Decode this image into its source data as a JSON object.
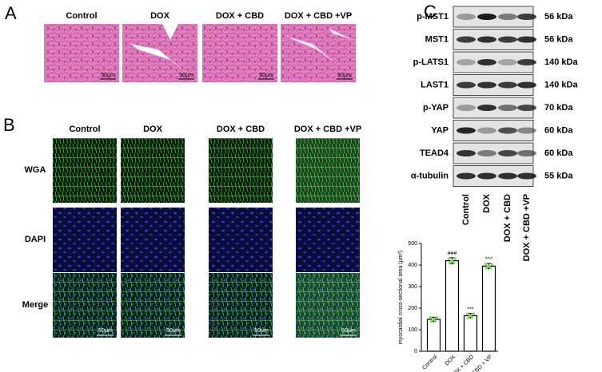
{
  "panel_a": {
    "label": "A",
    "columns": [
      "Control",
      "DOX",
      "DOX + CBD",
      "DOX + CBD +VP"
    ],
    "scale_bar": "50μm"
  },
  "panel_b": {
    "label": "B",
    "columns": [
      "Control",
      "DOX",
      "DOX + CBD",
      "DOX + CBD +VP"
    ],
    "rows": [
      "WGA",
      "DAPI",
      "Merge"
    ],
    "scale_bar": "50μm"
  },
  "panel_c": {
    "label": "C",
    "proteins": [
      {
        "name": "p-MST1",
        "size": "56 kDa"
      },
      {
        "name": "MST1",
        "size": "56 kDa"
      },
      {
        "name": "p-LATS1",
        "size": "140 kDa"
      },
      {
        "name": "LAST1",
        "size": "140 kDa"
      },
      {
        "name": "p-YAP",
        "size": "70 kDa"
      },
      {
        "name": "YAP",
        "size": "60 kDa"
      },
      {
        "name": "TEAD4",
        "size": "60 kDa"
      },
      {
        "name": "α-tubulin",
        "size": "55 kDa"
      }
    ],
    "lanes": [
      "Control",
      "DOX",
      "DOX + CBD",
      "DOX + CBD +VP"
    ]
  },
  "chart_data": {
    "type": "bar",
    "y_label": "myocardial cross-sectional area (μm²)",
    "categories": [
      "Control",
      "DOX",
      "DOX + CBD",
      "DOX + CBD + VP"
    ],
    "values": [
      148,
      420,
      165,
      395
    ],
    "errors": [
      10,
      14,
      10,
      12
    ],
    "annotations": [
      null,
      "###",
      "***",
      "^^^"
    ],
    "color": "#ffffff",
    "point_color": "#7ed957",
    "ylim": [
      0,
      500
    ],
    "yticks": [
      0,
      100,
      200,
      300,
      400,
      500
    ]
  }
}
